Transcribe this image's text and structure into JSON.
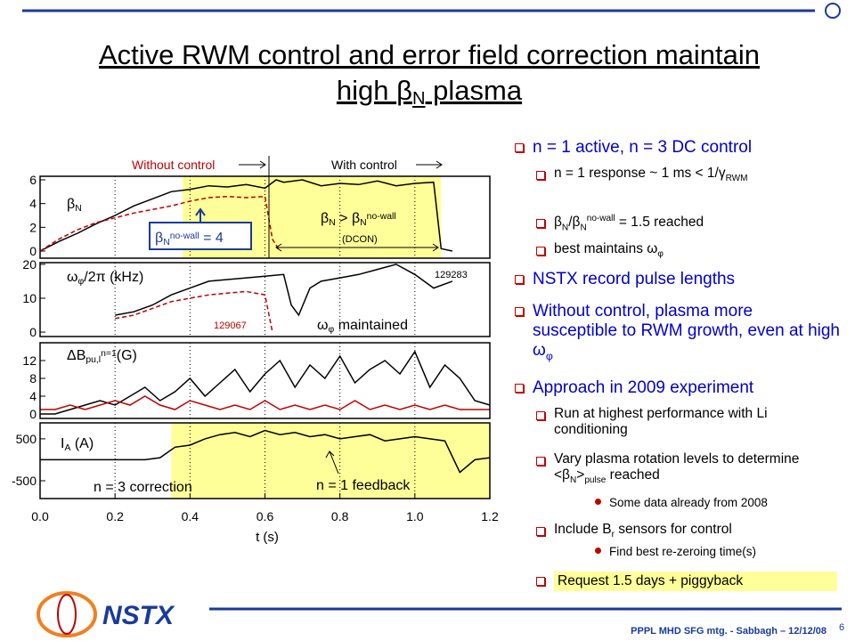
{
  "slide": {
    "title": {
      "line1": "Active RWM control and error field correction maintain",
      "line2": [
        {
          "t": "high "
        },
        {
          "t": "β"
        },
        {
          "t": "N",
          "s": "sub"
        },
        {
          "t": " plasma"
        }
      ]
    },
    "bullets": [
      {
        "level": 1,
        "segs": [
          {
            "t": "n = 1 active, n = 3 DC control"
          }
        ]
      },
      {
        "level": 2,
        "segs": [
          {
            "t": "n = 1 response ~ 1 ms < 1/"
          },
          {
            "t": "γ"
          },
          {
            "t": "RWM",
            "s": "sub"
          }
        ]
      },
      {
        "level": 2,
        "segs": [
          {
            "t": " β"
          },
          {
            "t": "N",
            "s": "sub"
          },
          {
            "t": "/β"
          },
          {
            "t": "N",
            "s": "sub"
          },
          {
            "t": "no-wall",
            "s": "sup"
          },
          {
            "t": " = 1.5 reached"
          }
        ]
      },
      {
        "level": 2,
        "segs": [
          {
            "t": "best maintains ω"
          },
          {
            "t": "φ",
            "s": "sub"
          }
        ]
      },
      {
        "level": 1,
        "segs": [
          {
            "t": "NSTX record pulse lengths"
          }
        ]
      },
      {
        "level": 1,
        "segs": [
          {
            "t": "Without control, plasma more susceptible to RWM growth, even at high ω"
          },
          {
            "t": "φ",
            "s": "sub"
          }
        ]
      },
      {
        "level": 1,
        "segs": [
          {
            "t": "Approach in 2009 experiment"
          }
        ]
      },
      {
        "level": 2,
        "segs": [
          {
            "t": "Run at highest performance with Li conditioning"
          }
        ]
      },
      {
        "level": 2,
        "segs": [
          {
            "t": "Vary plasma rotation levels to determine <β"
          },
          {
            "t": "N",
            "s": "sub"
          },
          {
            "t": ">"
          },
          {
            "t": "pulse",
            "s": "sub"
          },
          {
            "t": " reached"
          }
        ]
      },
      {
        "level": 3,
        "segs": [
          {
            "t": "Some data already from 2008"
          }
        ]
      },
      {
        "level": 2,
        "segs": [
          {
            "t": "Include B"
          },
          {
            "t": "r",
            "s": "sub"
          },
          {
            "t": " sensors for control"
          }
        ]
      },
      {
        "level": 3,
        "segs": [
          {
            "t": "Find best re-zeroing time(s)"
          }
        ]
      },
      {
        "level": 2,
        "highlight": "#ffff99",
        "segs": [
          {
            "t": "Request 1.5 days + piggyback"
          }
        ]
      }
    ],
    "footer": {
      "logo": "NSTX",
      "meeting": "PPPL MHD SFG mtg. - Sabbagh – 12/12/08",
      "page": "6"
    }
  },
  "chart_data": {
    "type": "line",
    "xlim": [
      0,
      1.2
    ],
    "xticks": [
      {
        "value": 0,
        "label": "0.0"
      },
      0.2,
      0.4,
      0.6,
      0.8,
      {
        "value": 1,
        "label": "1.0"
      },
      1.2
    ],
    "xlabel": "t (s)",
    "grid": true,
    "panels": [
      {
        "ylim": [
          -0.6,
          6.3
        ],
        "yticks": [
          0,
          2,
          4,
          6
        ],
        "highlight": [
          0.38,
          1.07
        ],
        "label": [
          {
            "t": "β"
          },
          {
            "t": "N",
            "s": "sub"
          }
        ],
        "series": [
          {
            "color": "#000000",
            "dash": false,
            "x": [
              0,
              0.05,
              0.1,
              0.15,
              0.2,
              0.25,
              0.3,
              0.35,
              0.4,
              0.45,
              0.5,
              0.55,
              0.6,
              0.63,
              0.65,
              0.7,
              0.75,
              0.8,
              0.85,
              0.9,
              0.95,
              1.0,
              1.05,
              1.07,
              1.1
            ],
            "values": [
              0,
              0.8,
              1.5,
              2.3,
              3,
              3.8,
              4.4,
              5,
              5.2,
              5.5,
              5.4,
              5.6,
              5.3,
              6,
              5.8,
              6,
              5.5,
              5.7,
              5.6,
              5.9,
              5.5,
              5.7,
              5.8,
              0.2,
              0
            ]
          },
          {
            "color": "#c00000",
            "dash": true,
            "x": [
              0,
              0.05,
              0.1,
              0.15,
              0.2,
              0.25,
              0.3,
              0.35,
              0.4,
              0.45,
              0.5,
              0.55,
              0.6,
              0.62,
              0.64
            ],
            "values": [
              0,
              1,
              1.8,
              2.4,
              2.8,
              3.2,
              3.5,
              3.8,
              4.2,
              4.5,
              4.6,
              4.5,
              4.6,
              1,
              0
            ]
          }
        ]
      },
      {
        "ylim": [
          -1.3,
          20.5
        ],
        "yticks": [
          0,
          10,
          20
        ],
        "label": [
          {
            "t": "ω"
          },
          {
            "t": "φ",
            "s": "sub"
          },
          {
            "t": "/2π (kHz)"
          }
        ],
        "series": [
          {
            "color": "#000000",
            "dash": false,
            "x": [
              0.2,
              0.25,
              0.3,
              0.35,
              0.4,
              0.45,
              0.5,
              0.55,
              0.6,
              0.65,
              0.67,
              0.69,
              0.72,
              0.75,
              0.8,
              0.85,
              0.9,
              0.95,
              1.0,
              1.05,
              1.1
            ],
            "values": [
              5,
              6,
              8,
              11,
              13,
              15,
              15.5,
              16,
              16.5,
              17,
              8,
              5,
              13,
              15,
              16,
              17,
              18.5,
              20,
              17,
              13,
              15
            ]
          },
          {
            "color": "#c00000",
            "dash": true,
            "x": [
              0.2,
              0.25,
              0.3,
              0.35,
              0.4,
              0.45,
              0.5,
              0.55,
              0.6,
              0.62
            ],
            "values": [
              4,
              5,
              7,
              9,
              10,
              11,
              11.5,
              12,
              11,
              0
            ]
          }
        ]
      },
      {
        "ylim": [
          -1,
          16
        ],
        "yticks": [
          0,
          4,
          8,
          12
        ],
        "label": [
          {
            "t": "ΔB"
          },
          {
            "t": "pu,l",
            "s": "sub"
          },
          {
            "t": "n=1",
            "s": "sup"
          },
          {
            "t": "(G)"
          }
        ],
        "series": [
          {
            "color": "#000000",
            "dash": false,
            "x": [
              0,
              0.04,
              0.08,
              0.12,
              0.16,
              0.2,
              0.24,
              0.28,
              0.32,
              0.36,
              0.4,
              0.44,
              0.48,
              0.52,
              0.56,
              0.6,
              0.64,
              0.68,
              0.72,
              0.76,
              0.8,
              0.84,
              0.88,
              0.92,
              0.96,
              1.0,
              1.04,
              1.08,
              1.12,
              1.16,
              1.2
            ],
            "values": [
              0,
              0,
              1,
              2,
              3,
              2,
              4,
              6,
              3,
              5,
              8,
              4,
              7,
              10,
              5,
              9,
              12,
              6,
              11,
              8,
              13,
              7,
              10,
              12,
              9,
              14,
              6,
              11,
              8,
              3,
              2
            ]
          },
          {
            "color": "#c00000",
            "dash": false,
            "x": [
              0,
              0.04,
              0.08,
              0.12,
              0.16,
              0.2,
              0.24,
              0.28,
              0.32,
              0.36,
              0.4,
              0.44,
              0.48,
              0.52,
              0.56,
              0.6,
              0.64,
              0.68,
              0.72,
              0.76,
              0.8,
              0.84,
              0.88,
              0.92,
              0.96,
              1.0,
              1.04,
              1.08,
              1.12,
              1.16,
              1.2
            ],
            "values": [
              1,
              1,
              2,
              1,
              2,
              3,
              2,
              4,
              2,
              1,
              3,
              2,
              1,
              2,
              1,
              3,
              1,
              2,
              1,
              2,
              1,
              3,
              1,
              2,
              1,
              2,
              1,
              2,
              1,
              1,
              1
            ]
          }
        ]
      },
      {
        "ylim": [
          -925,
          880
        ],
        "yticks": [
          -500,
          500
        ],
        "highlight": [
          0.35,
          1.2
        ],
        "label": [
          {
            "t": "I"
          },
          {
            "t": "A",
            "s": "sub"
          },
          {
            "t": " (A)"
          }
        ],
        "series": [
          {
            "color": "#000000",
            "dash": false,
            "x": [
              0,
              0.04,
              0.08,
              0.12,
              0.16,
              0.2,
              0.24,
              0.28,
              0.32,
              0.36,
              0.4,
              0.44,
              0.48,
              0.52,
              0.56,
              0.6,
              0.64,
              0.68,
              0.72,
              0.76,
              0.8,
              0.84,
              0.88,
              0.92,
              0.96,
              1.0,
              1.04,
              1.08,
              1.12,
              1.16,
              1.2
            ],
            "values": [
              0,
              0,
              0,
              0,
              0,
              0,
              0,
              0,
              50,
              300,
              350,
              500,
              600,
              650,
              550,
              700,
              600,
              650,
              550,
              600,
              500,
              550,
              600,
              450,
              500,
              550,
              500,
              450,
              -300,
              0,
              50
            ]
          }
        ]
      }
    ],
    "annotations": {
      "without": "Without control",
      "with": "With control",
      "nowall": [
        {
          "t": "β"
        },
        {
          "t": "N",
          "s": "sub"
        },
        {
          "t": "no-wall",
          "s": "sup"
        },
        {
          "t": " = 4"
        }
      ],
      "above": [
        {
          "t": "β"
        },
        {
          "t": "N",
          "s": "sub"
        },
        {
          "t": " > β"
        },
        {
          "t": "N",
          "s": "sub"
        },
        {
          "t": "no-wall",
          "s": "sup"
        }
      ],
      "dcon": "(DCON)",
      "shot1": "129283",
      "shot2": "129067",
      "maintained": [
        {
          "t": "ω"
        },
        {
          "t": "φ",
          "s": "sub"
        },
        {
          "t": " maintained"
        }
      ],
      "n3": "n = 3 correction",
      "n1": "n = 1 feedback"
    }
  }
}
